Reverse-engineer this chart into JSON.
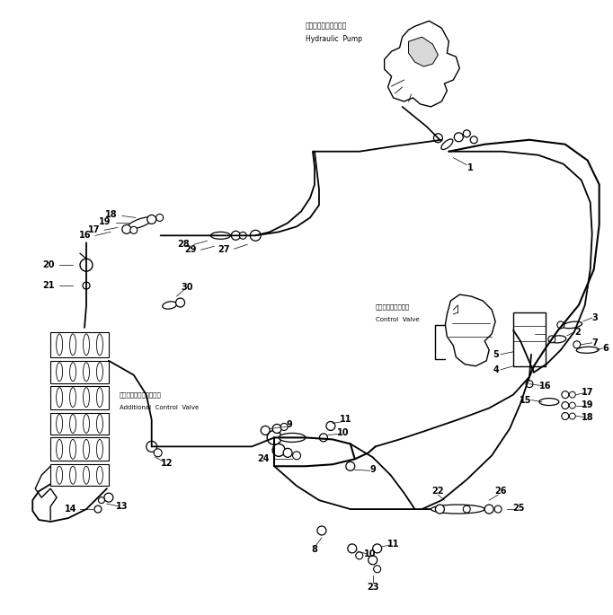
{
  "background_color": "#ffffff",
  "figsize": [
    6.82,
    6.85
  ],
  "dpi": 100,
  "labels": {
    "hydraulic_pump_jp": "ハイドロリックポンプ",
    "hydraulic_pump_en": "Hydraulic  Pump",
    "control_valve_jp": "コントロールバルブ",
    "control_valve_en": "Control  Valve",
    "additional_control_valve_jp": "追加コントロールバルブ",
    "additional_control_valve_en": "Additional  Control  Valve"
  }
}
